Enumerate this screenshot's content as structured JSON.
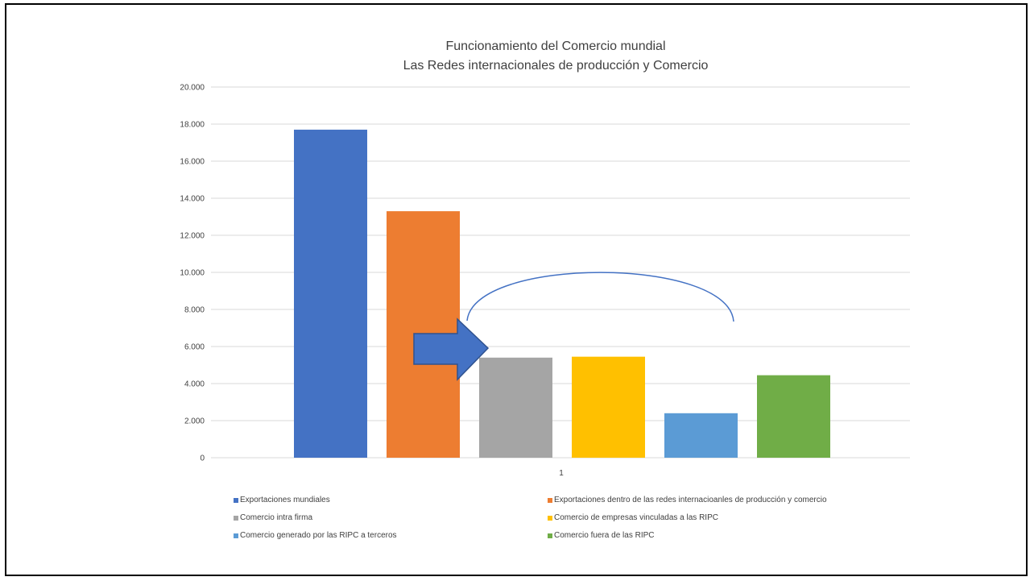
{
  "chart_data": {
    "type": "bar",
    "title_lines": [
      "Funcionamiento del Comercio mundial",
      "Las Redes internacionales de producción y Comercio"
    ],
    "categories": [
      "1"
    ],
    "ylim": [
      0,
      20000
    ],
    "y_ticks": [
      {
        "value": 0,
        "label": "0"
      },
      {
        "value": 2000,
        "label": "2.000"
      },
      {
        "value": 4000,
        "label": "4.000"
      },
      {
        "value": 6000,
        "label": "6.000"
      },
      {
        "value": 8000,
        "label": "8.000"
      },
      {
        "value": 10000,
        "label": "10.000"
      },
      {
        "value": 12000,
        "label": "12.000"
      },
      {
        "value": 14000,
        "label": "14.000"
      },
      {
        "value": 16000,
        "label": "16.000"
      },
      {
        "value": 18000,
        "label": "18.000"
      },
      {
        "value": 20000,
        "label": "20.000"
      }
    ],
    "grid": true,
    "legend_position": "bottom",
    "series": [
      {
        "name": "Exportaciones mundiales",
        "value": 17700,
        "color": "#4472C4"
      },
      {
        "name": "Exportaciones dentro de las redes internacioanles de producción y comercio",
        "value": 13300,
        "color": "#ED7D31"
      },
      {
        "name": "Comercio intra firma",
        "value": 5400,
        "color": "#A5A5A5"
      },
      {
        "name": "Comercio de empresas vinculadas a las RIPC",
        "value": 5450,
        "color": "#FFC000"
      },
      {
        "name": "Comercio generado por las RIPC a terceros",
        "value": 2400,
        "color": "#5B9BD5"
      },
      {
        "name": "Comercio fuera de las RIPC",
        "value": 4450,
        "color": "#70AD47"
      }
    ],
    "annotations": {
      "arrow_color": "#4472C4",
      "arc_color": "#4472C4"
    }
  }
}
